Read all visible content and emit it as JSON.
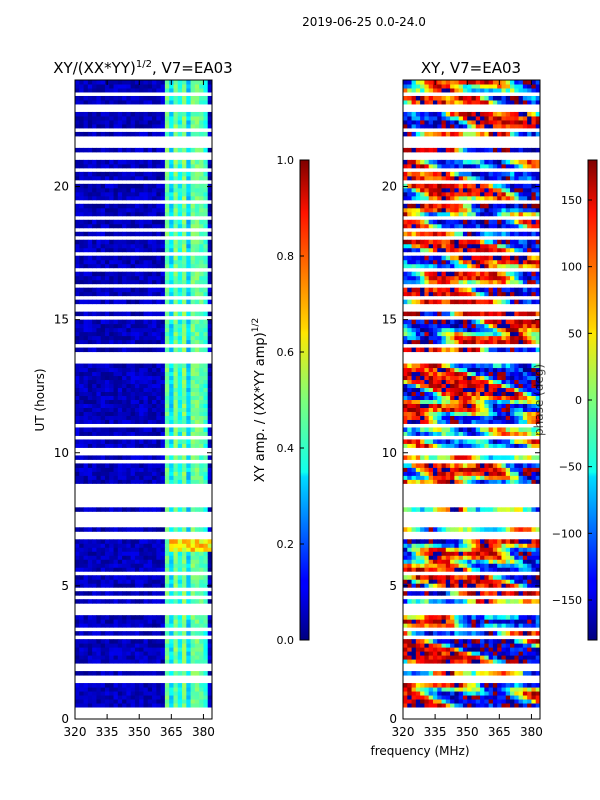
{
  "chart_data": [
    {
      "type": "heatmap",
      "title_base": "XY/(XX*YY)",
      "title_exp": "1/2",
      "title_suffix": ", V7=EA03",
      "ylabel": "UT (hours)",
      "xlim": [
        320,
        384
      ],
      "ylim": [
        0,
        24
      ],
      "xticks": [
        320,
        335,
        350,
        365,
        380
      ],
      "yticks": [
        0,
        5,
        10,
        15,
        20
      ],
      "colorbar": {
        "label_base": "XY amp. / (XX*YY amp)",
        "label_exp": "1/2",
        "range": [
          0.0,
          1.0
        ],
        "ticks": [
          "0.0",
          "0.2",
          "0.4",
          "0.6",
          "0.8",
          "1.0"
        ],
        "tick_values": [
          0.0,
          0.2,
          0.4,
          0.6,
          0.8,
          1.0
        ]
      },
      "description": "Normalized XY amplitude; mostly near 0 below 362 MHz, elevated 0.3-0.6 in 362-382 MHz band with vertical stripes"
    },
    {
      "type": "heatmap",
      "title": "XY, V7=EA03",
      "xlim": [
        320,
        384
      ],
      "ylim": [
        0,
        24
      ],
      "xticks": [
        320,
        335,
        350,
        365,
        380
      ],
      "yticks": [
        0,
        5,
        10,
        15,
        20
      ],
      "colorbar": {
        "label": "phase (deg)",
        "range": [
          -180,
          180
        ],
        "ticks": [
          "−150",
          "−100",
          "−50",
          "0",
          "50",
          "100",
          "150"
        ],
        "tick_values": [
          -150,
          -100,
          -50,
          0,
          50,
          100,
          150
        ]
      },
      "description": "XY phase in degrees, varying strongly with time and frequency"
    }
  ],
  "suptitle": "2019-06-25 0.0-24.0",
  "xlabel": "frequency (MHz)"
}
